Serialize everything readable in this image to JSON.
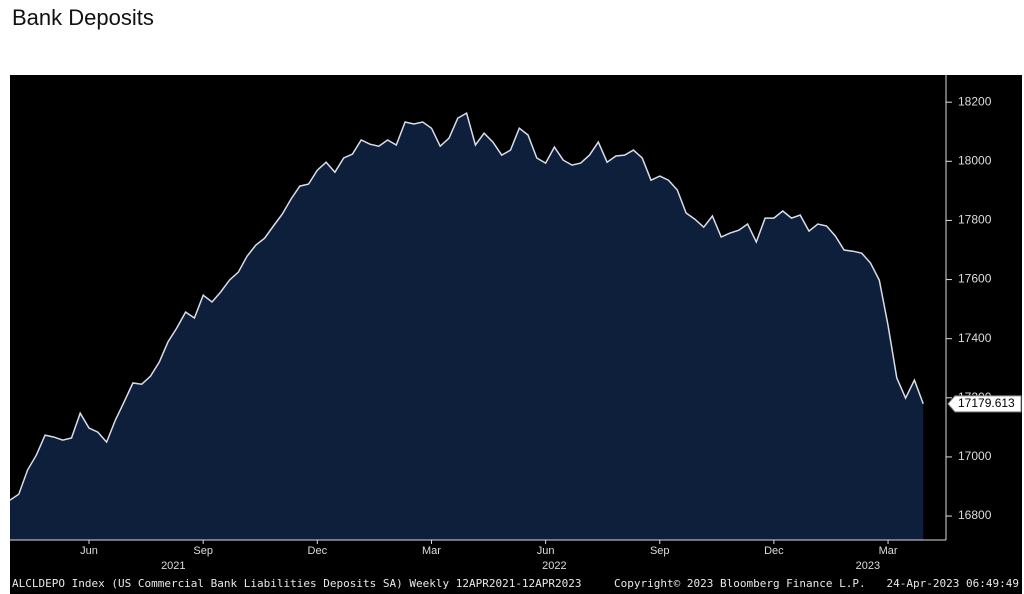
{
  "chart_data": {
    "type": "area",
    "title": "Bank Deposits",
    "values": [
      16854,
      16874,
      16956,
      17006,
      17074,
      17067,
      17057,
      17064,
      17148,
      17098,
      17084,
      17050,
      17125,
      17186,
      17250,
      17246,
      17273,
      17321,
      17389,
      17436,
      17490,
      17470,
      17547,
      17524,
      17558,
      17598,
      17625,
      17679,
      17717,
      17740,
      17781,
      17821,
      17872,
      17916,
      17923,
      17970,
      17997,
      17963,
      18011,
      18024,
      18072,
      18058,
      18051,
      18072,
      18055,
      18133,
      18126,
      18133,
      18112,
      18051,
      18078,
      18146,
      18163,
      18055,
      18095,
      18065,
      18021,
      18038,
      18112,
      18089,
      18011,
      17994,
      18048,
      18004,
      17987,
      17994,
      18021,
      18065,
      17997,
      18018,
      18021,
      18038,
      18011,
      17936,
      17950,
      17936,
      17903,
      17825,
      17804,
      17777,
      17815,
      17744,
      17757,
      17767,
      17788,
      17727,
      17808,
      17808,
      17832,
      17808,
      17818,
      17764,
      17788,
      17781,
      17747,
      17700,
      17696,
      17689,
      17656,
      17598,
      17446,
      17267,
      17199,
      17260,
      17179.613
    ],
    "last_value_label": "17179.613",
    "color": "#0e1f3c",
    "line_color": "#d8dde8",
    "xlim": [
      0,
      106.6
    ],
    "xticks": [
      {
        "value": 9,
        "label": "Jun"
      },
      {
        "value": 22,
        "label": "Sep"
      },
      {
        "value": 35,
        "label": "Dec"
      },
      {
        "value": 48,
        "label": "Mar"
      },
      {
        "value": 61,
        "label": "Jun"
      },
      {
        "value": 74,
        "label": "Sep"
      },
      {
        "value": 87,
        "label": "Dec"
      },
      {
        "value": 100,
        "label": "Mar"
      }
    ],
    "year_ticks": [
      {
        "value": 18.6,
        "label": "2021"
      },
      {
        "value": 62,
        "label": "2022"
      },
      {
        "value": 97.7,
        "label": "2023"
      }
    ],
    "ylim": [
      16719,
      18275
    ],
    "yticks": [
      16800,
      17000,
      17200,
      17400,
      17600,
      17800,
      18000,
      18200
    ],
    "footer": [
      "ALCLDEPO Index (US Commercial Bank Liabilities Deposits SA)  Weekly 12APR2021-12APR2023",
      "Copyright© 2023 Bloomberg Finance L.P.",
      "24-Apr-2023 06:49:49"
    ]
  }
}
